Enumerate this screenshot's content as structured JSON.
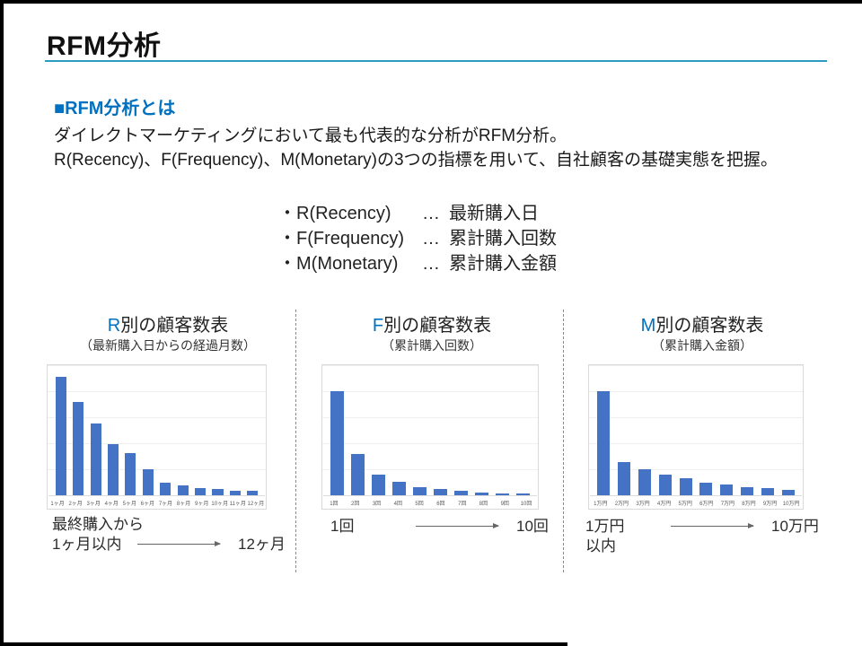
{
  "slide": {
    "title": "RFM分析"
  },
  "colors": {
    "bar": "#4472c4",
    "heading_blue": "#0070c0",
    "title_underline": "#2b9cbf"
  },
  "intro": {
    "heading": "■RFM分析とは",
    "line1": "ダイレクトマーケティングにおいて最も代表的な分析がRFM分析。",
    "line2": "R(Recency)、F(Frequency)、M(Monetary)の3つの指標を用いて、自社顧客の基礎実態を把握。"
  },
  "bullets": [
    {
      "term": "・R(Recency)",
      "dots": "…",
      "desc": "最新購入日"
    },
    {
      "term": "・F(Frequency)",
      "dots": "…",
      "desc": "累計購入回数"
    },
    {
      "term": "・M(Monetary)",
      "dots": "…",
      "desc": "累計購入金額"
    }
  ],
  "chart_data": [
    {
      "type": "bar",
      "title_prefix": "R",
      "title": "別の顧客数表",
      "subtitle": "（最新購入日からの経過月数）",
      "categories": [
        "1ヶ月",
        "2ヶ月",
        "3ヶ月",
        "4ヶ月",
        "5ヶ月",
        "6ヶ月",
        "7ヶ月",
        "8ヶ月",
        "9ヶ月",
        "10ヶ月",
        "11ヶ月",
        "12ヶ月"
      ],
      "values": [
        100,
        79,
        61,
        43,
        36,
        22,
        11,
        8,
        6,
        5,
        4,
        3.5
      ],
      "ylim": [
        0,
        110
      ],
      "xlabel": "",
      "ylabel": "",
      "grid": true,
      "legend": false,
      "note_start_line1": "最終購入から",
      "note_start_line2": "1ヶ月以内",
      "note_end": "12ヶ月"
    },
    {
      "type": "bar",
      "title_prefix": "F",
      "title": "別の顧客数表",
      "subtitle": "（累計購入回数）",
      "categories": [
        "1回",
        "2回",
        "3回",
        "4回",
        "5回",
        "6回",
        "7回",
        "8回",
        "9回",
        "10回"
      ],
      "values": [
        100,
        40,
        20,
        13,
        8,
        6,
        4,
        3,
        2,
        1.5
      ],
      "ylim": [
        0,
        125
      ],
      "xlabel": "",
      "ylabel": "",
      "grid": true,
      "legend": false,
      "note_start_line1": "1回",
      "note_start_line2": "",
      "note_end": "10回"
    },
    {
      "type": "bar",
      "title_prefix": "M",
      "title": "別の顧客数表",
      "subtitle": "（累計購入金額）",
      "categories": [
        "1万円",
        "2万円",
        "3万円",
        "4万円",
        "5万円",
        "6万円",
        "7万円",
        "8万円",
        "9万円",
        "10万円"
      ],
      "values": [
        100,
        32,
        25,
        20,
        16,
        12,
        10,
        8,
        6.5,
        5
      ],
      "ylim": [
        0,
        125
      ],
      "xlabel": "",
      "ylabel": "",
      "grid": true,
      "legend": false,
      "note_start_line1": "1万円",
      "note_start_line2": "以内",
      "note_end": "10万円"
    }
  ]
}
